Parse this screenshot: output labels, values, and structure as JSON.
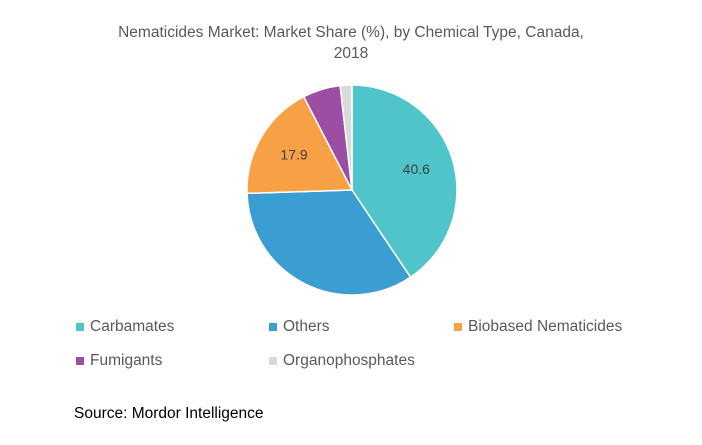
{
  "chart_data": {
    "type": "pie",
    "title": [
      "Nematicides Market: Market Share (%), by Chemical Type, Canada,",
      "2018"
    ],
    "slices": [
      {
        "label": "Carbamates",
        "value": 40.6,
        "color": "#4fc4cb",
        "show_label": true
      },
      {
        "label": "Others",
        "value": 33.9,
        "color": "#3b9ed2",
        "show_label": false
      },
      {
        "label": "Biobased Nematicides",
        "value": 17.9,
        "color": "#f7a046",
        "show_label": true
      },
      {
        "label": "Fumigants",
        "value": 5.8,
        "color": "#9b4ea4",
        "show_label": false
      },
      {
        "label": "Organophosphates",
        "value": 1.8,
        "color": "#d9d9d9",
        "show_label": false
      }
    ],
    "legend_position": "bottom",
    "start": "top, clockwise"
  },
  "source": "Source: Mordor Intelligence"
}
